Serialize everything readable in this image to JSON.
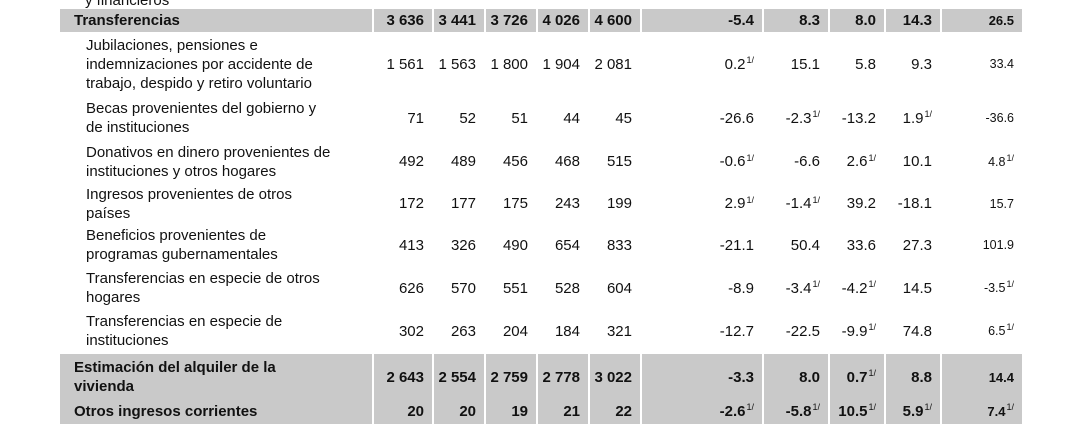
{
  "table": {
    "clipped_label": "y financieros",
    "rows": [
      {
        "lines": [
          "Transferencias"
        ],
        "total": true,
        "cells": [
          "3 636",
          "3 441",
          "3 726",
          "4 026",
          "4 600",
          "-5.4",
          "8.3",
          "8.0",
          "14.3",
          "26.5"
        ]
      },
      {
        "lines": [
          "Jubilaciones, pensiones e",
          "indemnizaciones por accidente de",
          "trabajo, despido y retiro voluntario"
        ],
        "cells": [
          "1 561",
          "1 563",
          "1 800",
          "1 904",
          "2 081",
          {
            "text": "0.2",
            "sup": "1/"
          },
          "15.1",
          "5.8",
          "9.3",
          "33.4"
        ]
      },
      {
        "lines": [
          "Becas provenientes del gobierno y",
          "de instituciones"
        ],
        "cells": [
          "71",
          "52",
          "51",
          "44",
          "45",
          "-26.6",
          {
            "text": "-2.3",
            "sup": "1/"
          },
          "-13.2",
          {
            "text": "1.9",
            "sup": "1/"
          },
          "-36.6"
        ]
      },
      {
        "lines": [
          "Donativos en dinero provenientes de",
          "instituciones y otros hogares"
        ],
        "cells": [
          "492",
          "489",
          "456",
          "468",
          "515",
          {
            "text": "-0.6",
            "sup": "1/"
          },
          "-6.6",
          {
            "text": "2.6",
            "sup": "1/"
          },
          "10.1",
          {
            "text": "4.8",
            "sup": "1/"
          }
        ]
      },
      {
        "lines": [
          "Ingresos provenientes de otros",
          "países"
        ],
        "cells": [
          "172",
          "177",
          "175",
          "243",
          "199",
          {
            "text": "2.9",
            "sup": "1/"
          },
          {
            "text": "-1.4",
            "sup": "1/"
          },
          "39.2",
          "-18.1",
          "15.7"
        ]
      },
      {
        "lines": [
          "Beneficios provenientes de",
          "programas gubernamentales"
        ],
        "cells": [
          "413",
          "326",
          "490",
          "654",
          "833",
          "-21.1",
          "50.4",
          "33.6",
          "27.3",
          "101.9"
        ]
      },
      {
        "lines": [
          "Transferencias en especie de otros",
          "hogares"
        ],
        "cells": [
          "626",
          "570",
          "551",
          "528",
          "604",
          "-8.9",
          {
            "text": "-3.4",
            "sup": "1/"
          },
          {
            "text": "-4.2",
            "sup": "1/"
          },
          "14.5",
          {
            "text": "-3.5",
            "sup": "1/"
          }
        ]
      },
      {
        "lines": [
          "Transferencias en especie de",
          "instituciones"
        ],
        "cells": [
          "302",
          "263",
          "204",
          "184",
          "321",
          "-12.7",
          "-22.5",
          {
            "text": "-9.9",
            "sup": "1/"
          },
          "74.8",
          {
            "text": "6.5",
            "sup": "1/"
          }
        ]
      },
      {
        "lines": [
          "Estimación del alquiler de la",
          "vivienda"
        ],
        "total": true,
        "cells": [
          "2 643",
          "2 554",
          "2 759",
          "2 778",
          "3 022",
          "-3.3",
          "8.0",
          {
            "text": "0.7",
            "sup": "1/"
          },
          "8.8",
          "14.4"
        ]
      },
      {
        "lines": [
          "Otros ingresos corrientes"
        ],
        "total": true,
        "cells": [
          "20",
          "20",
          "19",
          "21",
          "22",
          {
            "text": "-2.6",
            "sup": "1/"
          },
          {
            "text": "-5.8",
            "sup": "1/"
          },
          {
            "text": "10.5",
            "sup": "1/"
          },
          {
            "text": "5.9",
            "sup": "1/"
          },
          {
            "text": "7.4",
            "sup": "1/"
          }
        ]
      }
    ]
  }
}
